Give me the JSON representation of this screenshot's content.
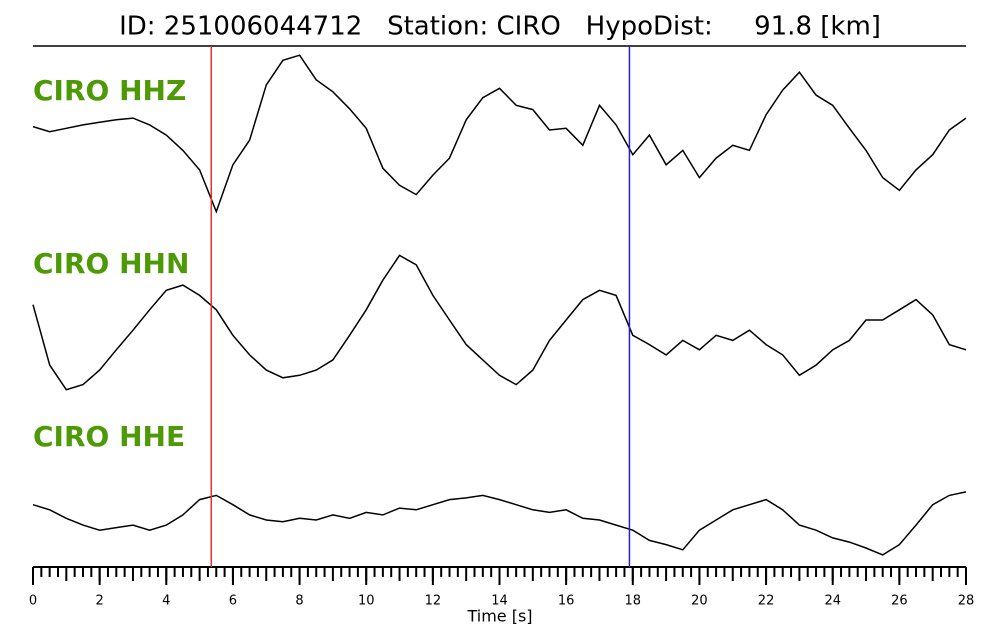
{
  "chart_data": {
    "type": "line",
    "title": "ID: 251006044712   Station: CIRO   HypoDist:     91.8 [km]",
    "xlabel": "Time [s]",
    "xlim": [
      0,
      28
    ],
    "xticks": [
      0,
      2,
      4,
      6,
      8,
      10,
      12,
      14,
      16,
      18,
      20,
      22,
      24,
      26,
      28
    ],
    "xminor_step": 0.25,
    "ylim": [
      -1,
      1
    ],
    "label_color": "#4d9a06",
    "markers": [
      {
        "x": 5.35,
        "color": "#e03030"
      },
      {
        "x": 17.9,
        "color": "#2020e0"
      }
    ],
    "x": [
      0,
      0.5,
      1,
      1.5,
      2,
      2.5,
      3,
      3.5,
      4,
      4.5,
      5,
      5.5,
      6,
      6.5,
      7,
      7.5,
      8,
      8.5,
      9,
      9.5,
      10,
      10.5,
      11,
      11.5,
      12,
      12.5,
      13,
      13.5,
      14,
      14.5,
      15,
      15.5,
      16,
      16.5,
      17,
      17.5,
      18,
      18.5,
      19,
      19.5,
      20,
      20.5,
      21,
      21.5,
      22,
      22.5,
      23,
      23.5,
      24,
      24.5,
      25,
      25.5,
      26,
      26.5,
      27,
      27.5,
      28
    ],
    "series": [
      {
        "name": "CIRO HHZ",
        "color": "#000000",
        "values": [
          0.04,
          -0.02,
          0.02,
          0.06,
          0.09,
          0.12,
          0.14,
          0.06,
          -0.06,
          -0.24,
          -0.47,
          -0.96,
          -0.41,
          -0.12,
          0.53,
          0.82,
          0.88,
          0.59,
          0.45,
          0.25,
          0.02,
          -0.45,
          -0.65,
          -0.76,
          -0.53,
          -0.33,
          0.12,
          0.38,
          0.49,
          0.29,
          0.24,
          0,
          0.02,
          -0.18,
          0.29,
          0.06,
          -0.29,
          -0.06,
          -0.41,
          -0.24,
          -0.56,
          -0.33,
          -0.18,
          -0.24,
          0.18,
          0.47,
          0.68,
          0.41,
          0.29,
          0.02,
          -0.24,
          -0.56,
          -0.71,
          -0.47,
          -0.29,
          0,
          0.14
        ]
      },
      {
        "name": "CIRO HHN",
        "color": "#000000",
        "values": [
          0.18,
          -0.53,
          -0.82,
          -0.76,
          -0.59,
          -0.35,
          -0.12,
          0.12,
          0.35,
          0.41,
          0.29,
          0.12,
          -0.18,
          -0.41,
          -0.59,
          -0.68,
          -0.65,
          -0.59,
          -0.47,
          -0.18,
          0.12,
          0.47,
          0.76,
          0.65,
          0.29,
          0,
          -0.29,
          -0.47,
          -0.65,
          -0.76,
          -0.59,
          -0.24,
          0,
          0.24,
          0.35,
          0.29,
          -0.18,
          -0.29,
          -0.41,
          -0.24,
          -0.35,
          -0.18,
          -0.24,
          -0.12,
          -0.29,
          -0.41,
          -0.65,
          -0.53,
          -0.35,
          -0.24,
          0,
          0,
          0.12,
          0.24,
          0.06,
          -0.29,
          -0.35
        ]
      },
      {
        "name": "CIRO HHE",
        "color": "#000000",
        "values": [
          0.18,
          0.12,
          0.02,
          -0.06,
          -0.12,
          -0.09,
          -0.06,
          -0.12,
          -0.06,
          0.06,
          0.24,
          0.29,
          0.18,
          0.06,
          0,
          -0.02,
          0.02,
          0,
          0.06,
          0.02,
          0.09,
          0.06,
          0.14,
          0.12,
          0.18,
          0.24,
          0.26,
          0.29,
          0.24,
          0.18,
          0.12,
          0.09,
          0.12,
          0.02,
          0,
          -0.06,
          -0.12,
          -0.24,
          -0.29,
          -0.35,
          -0.12,
          0,
          0.12,
          0.18,
          0.24,
          0.12,
          -0.06,
          -0.12,
          -0.21,
          -0.26,
          -0.33,
          -0.41,
          -0.29,
          -0.06,
          0.18,
          0.29,
          0.33
        ]
      }
    ]
  }
}
